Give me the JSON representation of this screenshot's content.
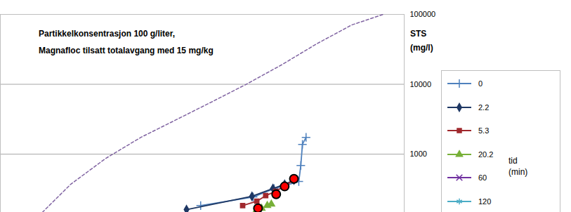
{
  "chart_data": {
    "type": "line",
    "title": "Partikkelkonsentrasjon 100 g/liter,",
    "subtitle": "Magnafloc tilsatt totalavgang med 15 mg/kg",
    "y_label": "STS\n(mg/l)",
    "legend_title": "tid\n(min)",
    "log": "y",
    "grid": true,
    "legend": "right",
    "tick_labels": "y",
    "xlim": [
      0,
      100
    ],
    "ylim": [
      147,
      100000
    ],
    "yticks": [
      1000,
      10000,
      100000
    ],
    "series": [
      {
        "color": "#8064a2",
        "marker": "none",
        "line_style": "dashed",
        "x": [
          10.4,
          17.4,
          26.1,
          34.8,
          43.5,
          52.2,
          60.9,
          69.6,
          78.3,
          87,
          94.8
        ],
        "values": [
          147,
          370,
          870,
          1740,
          3100,
          5540,
          10000,
          18900,
          37800,
          70600,
          100000
        ]
      },
      {
        "name": "0",
        "color": "#4f81bd",
        "marker": "plus",
        "line_style": "solid",
        "x": [
          49.6,
          62.6,
          67.8,
          73.9,
          74.4,
          74.8,
          75.7
        ],
        "values": [
          184,
          244,
          322,
          406,
          690,
          1380,
          1740
        ]
      },
      {
        "name": "2.2",
        "color": "#1f3864",
        "marker": "diamond",
        "line_style": "solid",
        "x": [
          46.1,
          62.3,
          67.5,
          70.4,
          72.7
        ],
        "values": [
          161,
          249,
          322,
          370,
          425
        ]
      },
      {
        "name": "5.3",
        "color": "#a0282d",
        "marker": "square",
        "line_style": "solid",
        "x": [
          60,
          63.5,
          65.7,
          68.2,
          70.4,
          72.7
        ],
        "values": [
          184,
          212,
          255,
          293,
          353,
          425
        ]
      },
      {
        "name": "20.2",
        "color": "#77b038",
        "marker": "triangle",
        "line_style": "solid",
        "x": [
          63.5,
          64.7,
          66.1,
          67.1
        ],
        "values": [
          161,
          168,
          184,
          193
        ]
      },
      {
        "name": "60",
        "color": "#7030a0",
        "marker": "cross",
        "line_style": "solid",
        "x": [],
        "values": []
      },
      {
        "name": "120",
        "color": "#4bacc6",
        "marker": "asterisk",
        "line_style": "solid",
        "x": [],
        "values": []
      },
      {
        "color": "#ff0000",
        "marker": "circle",
        "line_style": "none",
        "x": [
          63.8,
          68.3,
          70.4,
          72.7
        ],
        "values": [
          168,
          267,
          345,
          444
        ]
      }
    ]
  }
}
